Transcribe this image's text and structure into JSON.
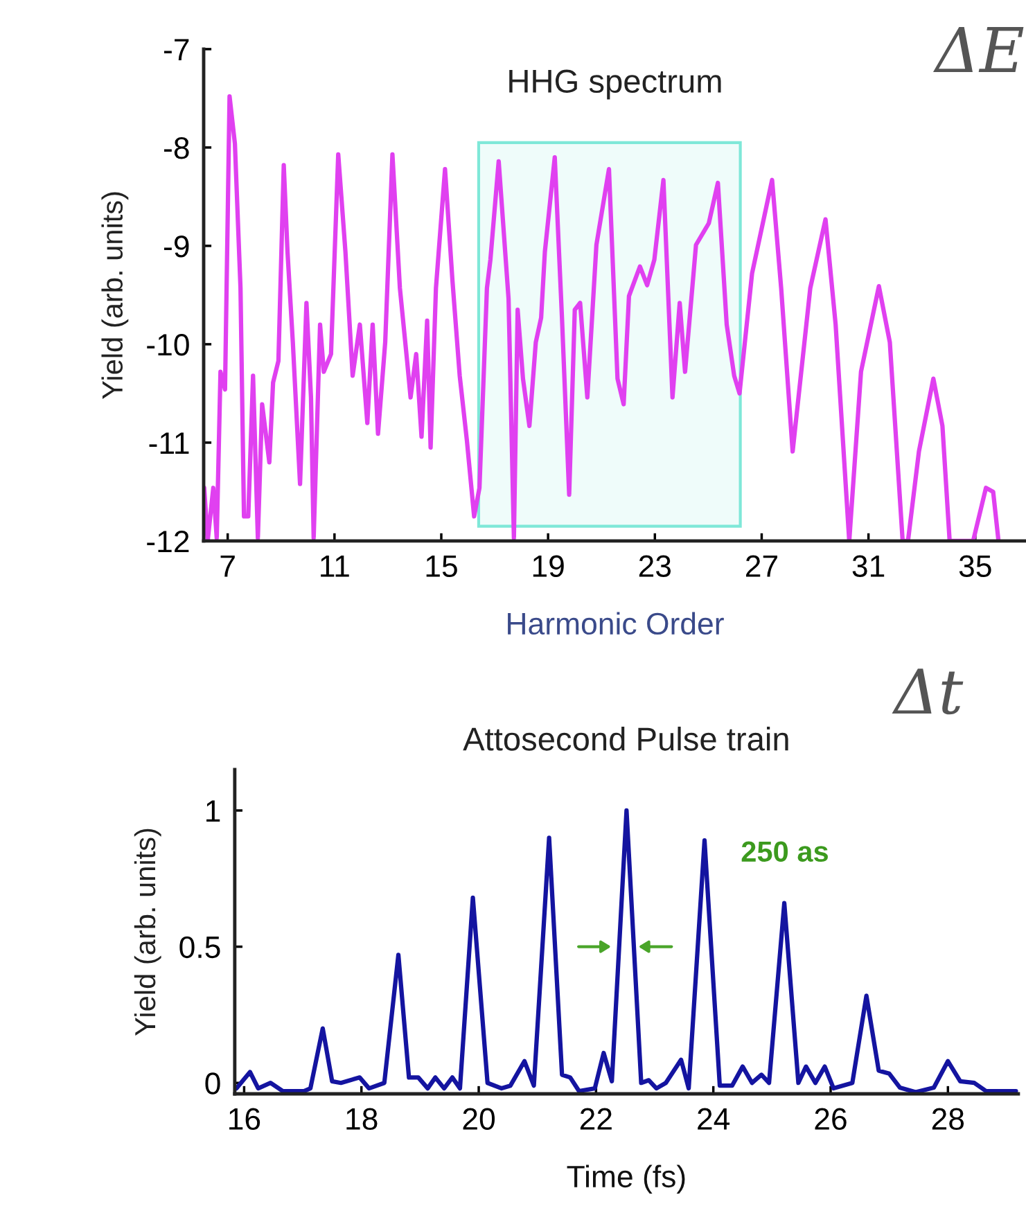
{
  "chart_data": [
    {
      "type": "line",
      "title": "HHG spectrum",
      "xlabel": "Harmonic Order",
      "ylabel": "Yield (arb. units)",
      "annotations": [
        "ΔE"
      ],
      "xlim": [
        6.1,
        36.9
      ],
      "xticks": [
        7,
        11,
        15,
        19,
        23,
        27,
        31,
        35
      ],
      "ylim": [
        -12,
        -7
      ],
      "yticks": [
        -12,
        -11,
        -10,
        -9,
        -8,
        -7
      ],
      "bands": [
        {
          "axis": "x",
          "from": 16.4,
          "to": 26.2,
          "color": "#7fe8d8"
        }
      ],
      "series": [
        {
          "color": "#e040f0",
          "x": [
            6.12,
            6.25,
            6.46,
            6.59,
            6.73,
            6.9,
            7.07,
            7.27,
            7.48,
            7.61,
            7.77,
            7.95,
            8.13,
            8.29,
            8.56,
            8.7,
            8.9,
            9.1,
            9.24,
            9.44,
            9.71,
            9.95,
            10.12,
            10.22,
            10.46,
            10.6,
            10.87,
            11.14,
            11.41,
            11.68,
            11.95,
            12.23,
            12.43,
            12.63,
            12.9,
            13.17,
            13.45,
            13.72,
            13.85,
            14.06,
            14.26,
            14.47,
            14.6,
            14.8,
            15.14,
            15.42,
            15.69,
            15.96,
            16.23,
            16.43,
            16.71,
            16.84,
            17.15,
            17.52,
            17.72,
            17.86,
            18.06,
            18.3,
            18.54,
            18.74,
            18.88,
            19.25,
            19.52,
            19.79,
            20.0,
            20.2,
            20.47,
            20.81,
            21.28,
            21.6,
            21.83,
            22.03,
            22.44,
            22.71,
            22.98,
            23.32,
            23.66,
            23.93,
            24.13,
            24.54,
            25.02,
            25.36,
            25.69,
            25.97,
            26.17,
            26.64,
            27.39,
            27.73,
            28.16,
            28.82,
            29.39,
            29.77,
            30.28,
            30.72,
            31.39,
            31.8,
            32.28,
            32.48,
            32.89,
            33.43,
            33.77,
            34.04,
            34.92,
            35.4,
            35.67,
            35.87
          ],
          "values": [
            -11.46,
            -12.0,
            -11.46,
            -11.97,
            -10.28,
            -10.46,
            -7.48,
            -7.96,
            -9.43,
            -11.75,
            -11.75,
            -10.32,
            -11.97,
            -10.61,
            -11.2,
            -10.39,
            -10.17,
            -8.18,
            -9.06,
            -9.98,
            -11.42,
            -9.58,
            -10.54,
            -11.97,
            -9.8,
            -10.28,
            -10.1,
            -8.07,
            -9.06,
            -10.32,
            -9.8,
            -10.8,
            -9.8,
            -10.91,
            -9.98,
            -8.07,
            -9.43,
            -10.17,
            -10.54,
            -10.1,
            -10.94,
            -9.76,
            -11.05,
            -9.43,
            -8.22,
            -9.36,
            -10.32,
            -10.98,
            -11.75,
            -11.46,
            -9.43,
            -9.14,
            -8.14,
            -9.54,
            -11.97,
            -9.65,
            -10.35,
            -10.83,
            -9.98,
            -9.73,
            -9.06,
            -8.1,
            -9.73,
            -11.53,
            -9.65,
            -9.58,
            -10.54,
            -8.99,
            -8.22,
            -10.35,
            -10.61,
            -9.51,
            -9.21,
            -9.4,
            -9.14,
            -8.33,
            -10.54,
            -9.58,
            -10.28,
            -8.99,
            -8.77,
            -8.36,
            -9.8,
            -10.32,
            -10.5,
            -9.28,
            -8.33,
            -9.43,
            -11.09,
            -9.43,
            -8.73,
            -9.8,
            -12.0,
            -10.28,
            -9.41,
            -9.98,
            -12.0,
            -12.0,
            -11.09,
            -10.35,
            -10.83,
            -12.0,
            -12.0,
            -11.46,
            -11.5,
            -12.0
          ]
        }
      ]
    },
    {
      "type": "line",
      "title": "Attosecond Pulse train",
      "xlabel": "Time (fs)",
      "ylabel": "Yield (arb. units)",
      "annotations": [
        "Δt",
        "250 as"
      ],
      "xlim": [
        15.84,
        29.2
      ],
      "xticks": [
        16,
        18,
        20,
        22,
        24,
        26,
        28
      ],
      "ylim": [
        -0.04,
        1.15
      ],
      "yticks": [
        0,
        0.5,
        1
      ],
      "series": [
        {
          "color": "#1414a0",
          "x": [
            15.87,
            16.1,
            16.24,
            16.45,
            16.66,
            17.02,
            17.13,
            17.34,
            17.5,
            17.65,
            17.97,
            18.13,
            18.39,
            18.63,
            18.81,
            18.97,
            19.13,
            19.26,
            19.41,
            19.55,
            19.68,
            19.9,
            20.15,
            20.39,
            20.54,
            20.78,
            20.94,
            21.2,
            21.42,
            21.56,
            21.71,
            21.98,
            22.13,
            22.27,
            22.52,
            22.77,
            22.9,
            23.03,
            23.19,
            23.45,
            23.58,
            23.85,
            24.11,
            24.32,
            24.5,
            24.66,
            24.82,
            24.95,
            25.21,
            25.45,
            25.58,
            25.74,
            25.9,
            26.05,
            26.37,
            26.61,
            26.82,
            27.0,
            27.18,
            27.45,
            27.76,
            28.0,
            28.21,
            28.45,
            28.65,
            29.16
          ],
          "values": [
            -0.02,
            0.04,
            -0.02,
            0.0,
            -0.03,
            -0.03,
            -0.02,
            0.2,
            0.006,
            0.0,
            0.02,
            -0.02,
            0.0,
            0.47,
            0.02,
            0.02,
            -0.02,
            0.02,
            -0.02,
            0.02,
            -0.02,
            0.68,
            0.0,
            -0.02,
            -0.01,
            0.08,
            -0.01,
            0.9,
            0.03,
            0.02,
            -0.03,
            -0.02,
            0.11,
            0.006,
            1.0,
            0.0,
            0.01,
            -0.02,
            0.0,
            0.085,
            -0.02,
            0.89,
            -0.01,
            -0.01,
            0.06,
            0.0,
            0.03,
            0.0,
            0.66,
            0.0,
            0.06,
            0.0,
            0.06,
            -0.02,
            0.0,
            0.32,
            0.045,
            0.034,
            -0.017,
            -0.034,
            -0.017,
            0.08,
            0.006,
            0.0,
            -0.03,
            -0.03
          ]
        }
      ]
    }
  ]
}
